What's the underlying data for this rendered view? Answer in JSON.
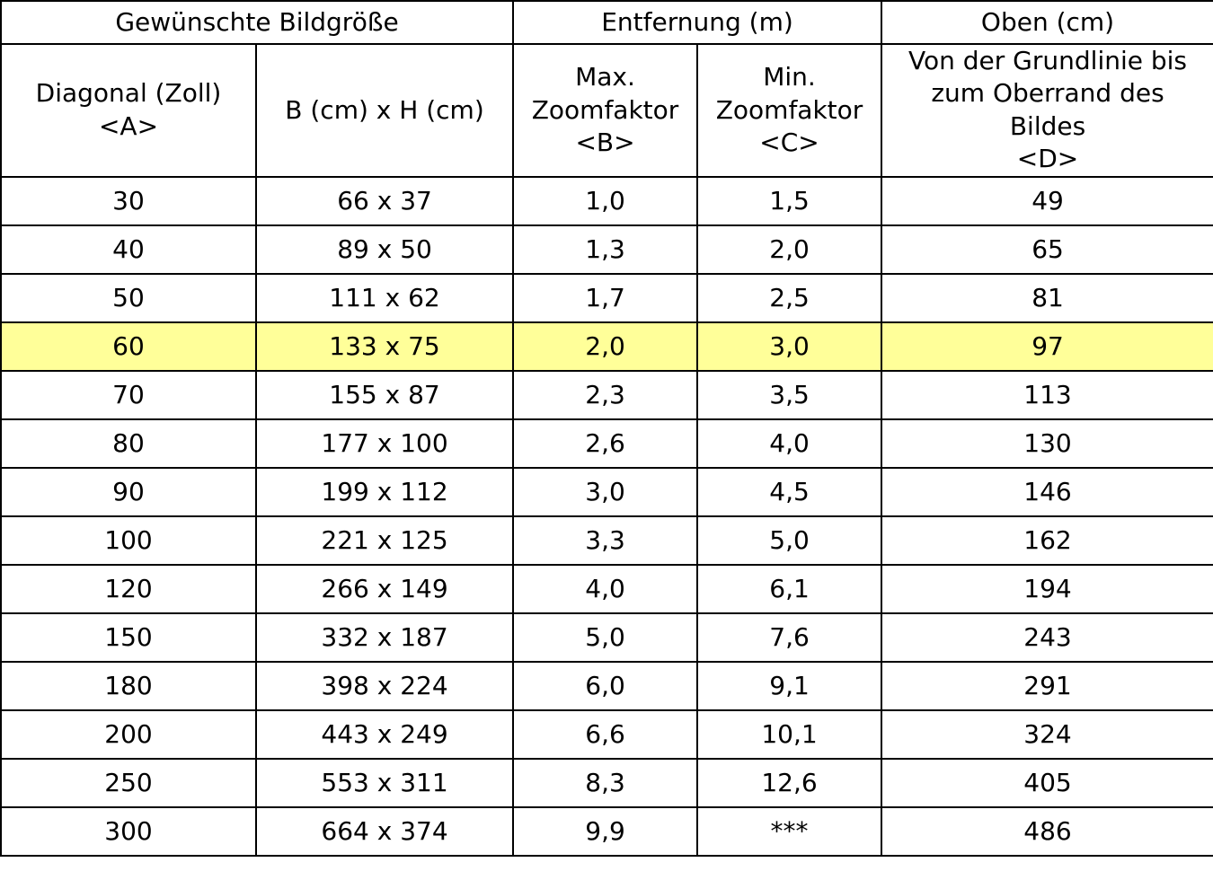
{
  "table": {
    "group_headers": [
      {
        "label": "Gewünschte Bildgröße",
        "colspan": 2
      },
      {
        "label": "Entfernung (m)",
        "colspan": 2
      },
      {
        "label": "Oben (cm)",
        "colspan": 1
      }
    ],
    "sub_headers": [
      "Diagonal (Zoll)\n<A>",
      "B (cm) x H (cm)",
      "Max.\nZoomfaktor\n<B>",
      "Min.\nZoomfaktor\n<C>",
      "Von der Grundlinie bis\nzum Oberrand des\nBildes\n<D>"
    ],
    "highlight_color": "#ffff99",
    "rows": [
      {
        "cells": [
          "30",
          "66 x 37",
          "1,0",
          "1,5",
          "49"
        ],
        "highlighted": false
      },
      {
        "cells": [
          "40",
          "89 x 50",
          "1,3",
          "2,0",
          "65"
        ],
        "highlighted": false
      },
      {
        "cells": [
          "50",
          "111 x 62",
          "1,7",
          "2,5",
          "81"
        ],
        "highlighted": false
      },
      {
        "cells": [
          "60",
          "133 x 75",
          "2,0",
          "3,0",
          "97"
        ],
        "highlighted": true
      },
      {
        "cells": [
          "70",
          "155 x 87",
          "2,3",
          "3,5",
          "113"
        ],
        "highlighted": false
      },
      {
        "cells": [
          "80",
          "177 x 100",
          "2,6",
          "4,0",
          "130"
        ],
        "highlighted": false
      },
      {
        "cells": [
          "90",
          "199 x 112",
          "3,0",
          "4,5",
          "146"
        ],
        "highlighted": false
      },
      {
        "cells": [
          "100",
          "221 x 125",
          "3,3",
          "5,0",
          "162"
        ],
        "highlighted": false
      },
      {
        "cells": [
          "120",
          "266 x 149",
          "4,0",
          "6,1",
          "194"
        ],
        "highlighted": false
      },
      {
        "cells": [
          "150",
          "332 x 187",
          "5,0",
          "7,6",
          "243"
        ],
        "highlighted": false
      },
      {
        "cells": [
          "180",
          "398 x 224",
          "6,0",
          "9,1",
          "291"
        ],
        "highlighted": false
      },
      {
        "cells": [
          "200",
          "443 x 249",
          "6,6",
          "10,1",
          "324"
        ],
        "highlighted": false
      },
      {
        "cells": [
          "250",
          "553 x 311",
          "8,3",
          "12,6",
          "405"
        ],
        "highlighted": false
      },
      {
        "cells": [
          "300",
          "664 x 374",
          "9,9",
          "***",
          "486"
        ],
        "highlighted": false
      }
    ]
  }
}
